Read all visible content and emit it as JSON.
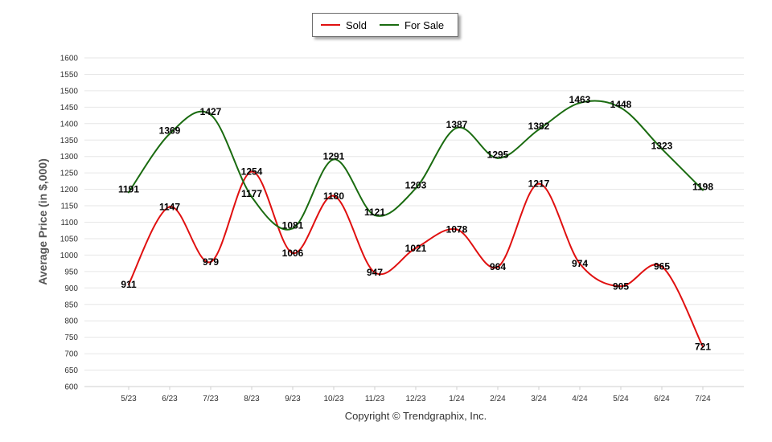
{
  "chart_data": {
    "type": "line",
    "title": "",
    "xlabel": "",
    "ylabel": "Average Price  (in $,000)",
    "ylim": [
      600,
      1600
    ],
    "ytick_step": 50,
    "grid": true,
    "legend_position": "top-center",
    "categories": [
      "5/23",
      "6/23",
      "7/23",
      "8/23",
      "9/23",
      "10/23",
      "11/23",
      "12/23",
      "1/24",
      "2/24",
      "3/24",
      "4/24",
      "5/24",
      "6/24",
      "7/24"
    ],
    "series": [
      {
        "name": "Sold",
        "color": "#e01010",
        "values": [
          911,
          1147,
          979,
          1254,
          1006,
          1180,
          947,
          1021,
          1078,
          964,
          1217,
          974,
          905,
          965,
          721
        ]
      },
      {
        "name": "For Sale",
        "color": "#1a6b10",
        "values": [
          1191,
          1369,
          1427,
          1177,
          1081,
          1291,
          1121,
          1203,
          1387,
          1295,
          1382,
          1463,
          1448,
          1323,
          1198
        ]
      }
    ]
  },
  "footer": {
    "copyright": "Copyright © Trendgraphix, Inc."
  }
}
